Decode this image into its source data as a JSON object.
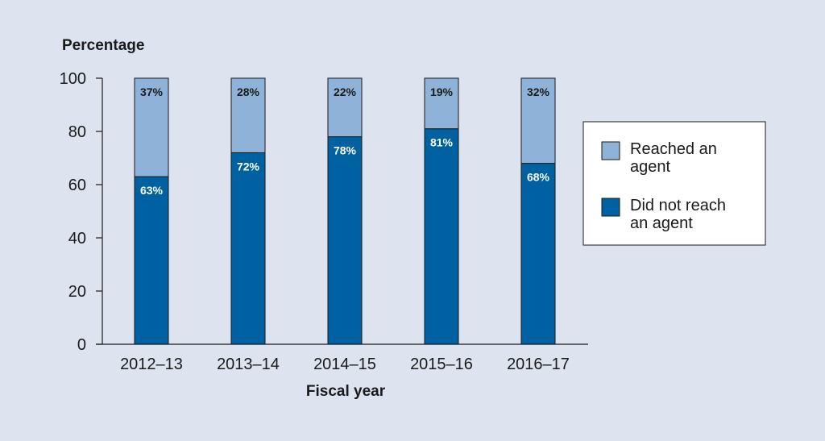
{
  "chart_data": {
    "type": "bar",
    "stacked": true,
    "title": "",
    "ylabel": "Percentage",
    "xlabel": "Fiscal year",
    "ylim": [
      0,
      100
    ],
    "yticks": [
      0,
      20,
      40,
      60,
      80,
      100
    ],
    "categories": [
      "2012–13",
      "2013–14",
      "2014–15",
      "2015–16",
      "2016–17"
    ],
    "series": [
      {
        "name": "Did not reach an agent",
        "legend_lines": [
          "Did not reach",
          "an agent"
        ],
        "color": "#0061a2",
        "label_color": "#ffffff",
        "values": [
          63,
          72,
          78,
          81,
          68
        ],
        "labels": [
          "63%",
          "72%",
          "78%",
          "81%",
          "68%"
        ]
      },
      {
        "name": "Reached an agent",
        "legend_lines": [
          "Reached an",
          "agent"
        ],
        "color": "#8fb2d8",
        "label_color": "#1a1a1a",
        "values": [
          37,
          28,
          22,
          19,
          32
        ],
        "labels": [
          "37%",
          "28%",
          "22%",
          "19%",
          "32%"
        ]
      }
    ],
    "legend_placement": "right",
    "grid": false
  }
}
